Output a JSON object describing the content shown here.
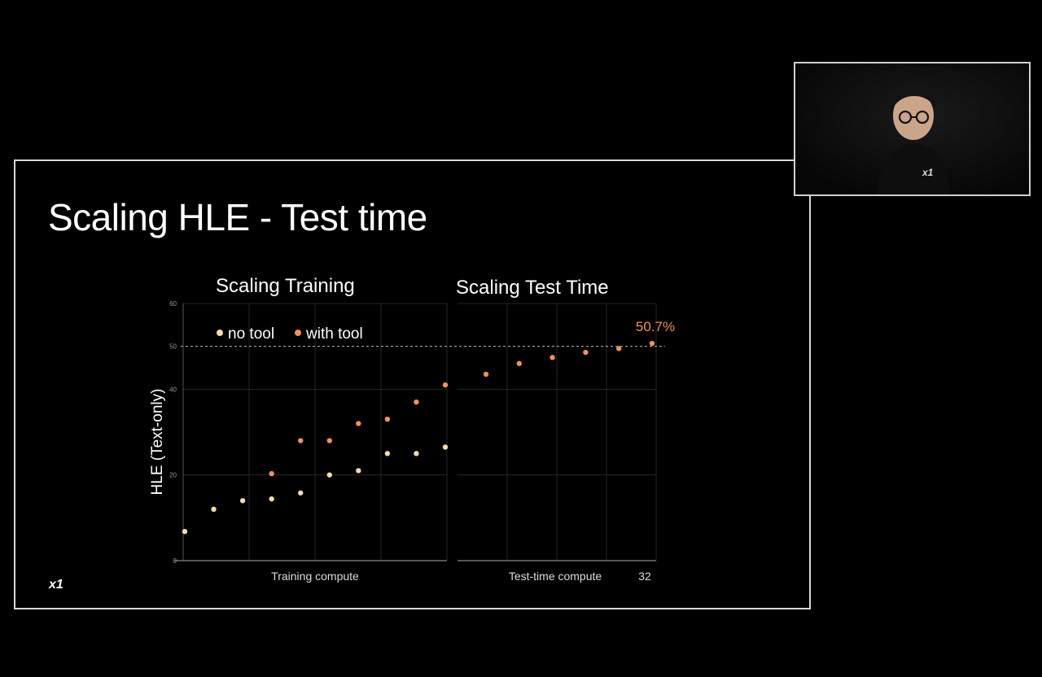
{
  "slide": {
    "title": "Scaling HLE - Test time",
    "logo": "x1"
  },
  "chart_data": [
    {
      "type": "scatter",
      "title": "Scaling Training",
      "xlabel": "Training compute",
      "ylabel": "HLE (Text-only)",
      "ylim": [
        0,
        60
      ],
      "yticks": [
        0,
        20,
        40,
        50,
        60
      ],
      "grid": true,
      "legend_position": "top-left",
      "reference_line": {
        "y": 50,
        "style": "dashed"
      },
      "series": [
        {
          "name": "no tool",
          "color": "#f5d9b0",
          "x": [
            1,
            2,
            3,
            4,
            5,
            6,
            7,
            8,
            9,
            10
          ],
          "values": [
            6.8,
            12,
            14,
            14.4,
            15.8,
            20,
            21,
            25,
            25,
            26.5
          ]
        },
        {
          "name": "with tool",
          "color": "#f0915a",
          "x": [
            4,
            5,
            6,
            7,
            8,
            9,
            10
          ],
          "values": [
            20.3,
            28,
            28,
            32,
            33,
            37,
            41
          ]
        }
      ]
    },
    {
      "type": "scatter",
      "title": "Scaling Test Time",
      "xlabel": "Test-time compute",
      "x_end_label": "32",
      "ylim": [
        0,
        60
      ],
      "grid": true,
      "reference_line": {
        "y": 50,
        "style": "dashed"
      },
      "annotation": {
        "text": "50.7%",
        "color": "#f0915a"
      },
      "series": [
        {
          "name": "with tool",
          "color": "#f0915a",
          "x": [
            1,
            2,
            3,
            4,
            5,
            6
          ],
          "values": [
            43.5,
            46,
            47.4,
            48.6,
            49.5,
            50.7
          ]
        }
      ]
    }
  ]
}
